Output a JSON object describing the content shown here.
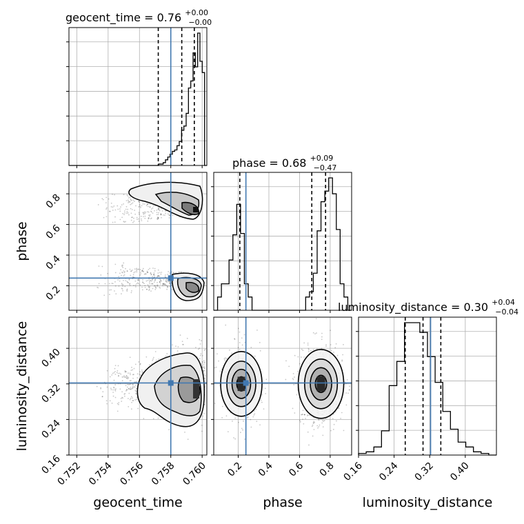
{
  "chart_data": {
    "type": "corner",
    "parameters": [
      "geocent_time",
      "phase",
      "luminosity_distance"
    ],
    "titles": {
      "geocent_time": {
        "name": "geocent_time",
        "median": "0.76",
        "plus": "+0.00",
        "minus": "−0.00"
      },
      "phase": {
        "name": "phase",
        "median": "0.68",
        "plus": "+0.09",
        "minus": "−0.47"
      },
      "luminosity_distance": {
        "name": "luminosity_distance",
        "median": "0.30",
        "plus": "+0.04",
        "minus": "−0.04"
      }
    },
    "axis_labels": {
      "geocent_time": "geocent_time",
      "phase": "phase",
      "luminosity_distance": "luminosity_distance"
    },
    "ranges": {
      "geocent_time": [
        0.7515,
        0.7603
      ],
      "phase": [
        0.04,
        0.94
      ],
      "luminosity_distance": [
        0.16,
        0.47
      ]
    },
    "ticks": {
      "geocent_time": {
        "values": [
          0.752,
          0.754,
          0.756,
          0.758,
          0.76
        ],
        "labels": [
          "0.752",
          "0.754",
          "0.756",
          "0.758",
          "0.760"
        ]
      },
      "phase_x": {
        "values": [
          0.2,
          0.4,
          0.6,
          0.8
        ],
        "labels": [
          "0.2",
          "0.4",
          "0.6",
          "0.8"
        ]
      },
      "phase_y": {
        "values": [
          0.2,
          0.4,
          0.6,
          0.8
        ],
        "labels": [
          "0.2",
          "0.4",
          "0.6",
          "0.8"
        ]
      },
      "luminosity_distance_x": {
        "values": [
          0.16,
          0.24,
          0.32,
          0.4
        ],
        "labels": [
          "0.16",
          "0.24",
          "0.32",
          "0.40"
        ]
      },
      "luminosity_distance_y": {
        "values": [
          0.16,
          0.24,
          0.32,
          0.4
        ],
        "labels": [
          "0.16",
          "0.24",
          "0.32",
          "0.40"
        ]
      }
    },
    "truths": {
      "geocent_time": 0.758,
      "phase": 0.25,
      "luminosity_distance": 0.322
    },
    "quantiles": {
      "geocent_time": [
        0.7572,
        0.7587,
        0.7595
      ],
      "phase": [
        0.21,
        0.68,
        0.77
      ],
      "luminosity_distance": [
        0.265,
        0.305,
        0.345
      ]
    },
    "histograms": {
      "geocent_time": [
        0,
        0,
        0,
        0,
        0,
        0,
        0,
        0,
        0,
        0,
        0,
        0,
        0,
        0,
        0,
        0,
        0,
        0,
        0,
        0,
        0,
        0,
        0,
        0,
        0,
        0,
        0,
        0,
        0,
        0,
        0,
        0,
        0,
        0,
        0,
        0,
        0,
        0,
        0,
        1,
        1,
        2,
        4,
        6,
        8,
        10,
        11,
        14,
        17,
        25,
        28,
        37,
        55,
        60,
        80,
        70,
        94,
        74,
        66,
        0
      ],
      "phase": [
        0,
        10,
        20,
        20,
        38,
        57,
        80,
        58,
        20,
        10,
        0,
        0,
        0,
        0,
        0,
        0,
        0,
        0,
        0,
        0,
        0,
        0,
        0,
        0,
        10,
        14,
        28,
        60,
        82,
        90,
        100,
        88,
        61,
        20,
        10,
        0
      ],
      "luminosity_distance": [
        1,
        2,
        5,
        15,
        43,
        58,
        82,
        82,
        76,
        61,
        45,
        27,
        16,
        8,
        5,
        2,
        1,
        0
      ]
    },
    "grid": true,
    "colors": {
      "truth": "#4178b0",
      "hist": "#000000",
      "contour": "#000000",
      "quantile": "#000000",
      "grid": "#b0b0b0"
    }
  }
}
